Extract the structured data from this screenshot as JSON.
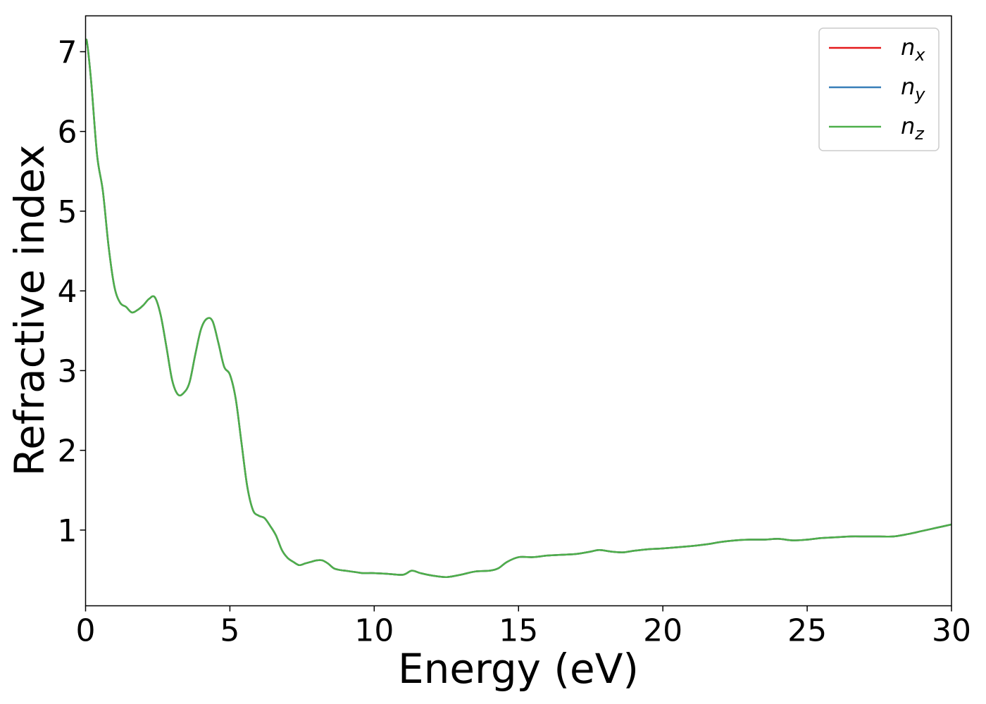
{
  "chart_data": {
    "type": "line",
    "xlabel": "Energy (eV)",
    "ylabel": "Refractive index",
    "xlim": [
      0,
      30
    ],
    "ylim": [
      0.05,
      7.45
    ],
    "grid": false,
    "legend_placement": "top-right",
    "x_ticks": [
      {
        "value": 0,
        "label": "0"
      },
      {
        "value": 5,
        "label": "5"
      },
      {
        "value": 10,
        "label": "10"
      },
      {
        "value": 15,
        "label": "15"
      },
      {
        "value": 20,
        "label": "20"
      },
      {
        "value": 25,
        "label": "25"
      },
      {
        "value": 30,
        "label": "30"
      }
    ],
    "y_ticks": [
      {
        "value": 1,
        "label": "1"
      },
      {
        "value": 2,
        "label": "2"
      },
      {
        "value": 3,
        "label": "3"
      },
      {
        "value": 4,
        "label": "4"
      },
      {
        "value": 5,
        "label": "5"
      },
      {
        "value": 6,
        "label": "6"
      },
      {
        "value": 7,
        "label": "7"
      }
    ],
    "x": [
      0,
      0.05,
      0.2,
      0.4,
      0.6,
      0.8,
      1.0,
      1.2,
      1.4,
      1.6,
      1.8,
      2.0,
      2.2,
      2.4,
      2.6,
      2.8,
      3.0,
      3.2,
      3.4,
      3.6,
      3.8,
      4.0,
      4.2,
      4.4,
      4.6,
      4.8,
      5.0,
      5.2,
      5.4,
      5.6,
      5.8,
      6.0,
      6.2,
      6.4,
      6.6,
      6.8,
      7.0,
      7.2,
      7.4,
      7.6,
      7.8,
      8.0,
      8.2,
      8.4,
      8.6,
      8.8,
      9.0,
      9.2,
      9.4,
      9.6,
      9.8,
      10.0,
      10.5,
      11.0,
      11.3,
      11.6,
      12.0,
      12.5,
      13.0,
      13.5,
      14.0,
      14.3,
      14.6,
      15.0,
      15.5,
      16.0,
      16.5,
      17.0,
      17.5,
      17.8,
      18.2,
      18.6,
      19.0,
      19.5,
      20.0,
      21.0,
      21.5,
      22.0,
      22.5,
      23.0,
      23.5,
      24.0,
      24.5,
      25.0,
      25.5,
      26.0,
      26.5,
      27.0,
      27.5,
      28.0,
      28.5,
      29.0,
      29.5,
      30.0
    ],
    "series": [
      {
        "name": "n_x",
        "color": "#e41a1c",
        "values": [
          7.1,
          7.12,
          6.6,
          5.7,
          5.25,
          4.55,
          4.05,
          3.85,
          3.8,
          3.73,
          3.76,
          3.82,
          3.9,
          3.92,
          3.7,
          3.3,
          2.88,
          2.7,
          2.72,
          2.85,
          3.2,
          3.52,
          3.65,
          3.62,
          3.35,
          3.05,
          2.95,
          2.65,
          2.1,
          1.55,
          1.25,
          1.18,
          1.15,
          1.05,
          0.93,
          0.75,
          0.65,
          0.6,
          0.56,
          0.58,
          0.6,
          0.62,
          0.62,
          0.58,
          0.52,
          0.5,
          0.49,
          0.48,
          0.47,
          0.46,
          0.46,
          0.46,
          0.45,
          0.44,
          0.49,
          0.46,
          0.43,
          0.41,
          0.44,
          0.48,
          0.49,
          0.52,
          0.6,
          0.66,
          0.66,
          0.68,
          0.69,
          0.7,
          0.73,
          0.75,
          0.73,
          0.72,
          0.74,
          0.76,
          0.77,
          0.8,
          0.82,
          0.85,
          0.87,
          0.88,
          0.88,
          0.89,
          0.87,
          0.88,
          0.9,
          0.91,
          0.92,
          0.92,
          0.92,
          0.92,
          0.95,
          0.99,
          1.03,
          1.07
        ]
      },
      {
        "name": "n_y",
        "color": "#377eb8",
        "values": [
          7.1,
          7.12,
          6.6,
          5.7,
          5.25,
          4.55,
          4.05,
          3.85,
          3.8,
          3.73,
          3.76,
          3.82,
          3.9,
          3.92,
          3.7,
          3.3,
          2.88,
          2.7,
          2.72,
          2.85,
          3.2,
          3.52,
          3.65,
          3.62,
          3.35,
          3.05,
          2.95,
          2.65,
          2.1,
          1.55,
          1.25,
          1.18,
          1.15,
          1.05,
          0.93,
          0.75,
          0.65,
          0.6,
          0.56,
          0.58,
          0.6,
          0.62,
          0.62,
          0.58,
          0.52,
          0.5,
          0.49,
          0.48,
          0.47,
          0.46,
          0.46,
          0.46,
          0.45,
          0.44,
          0.49,
          0.46,
          0.43,
          0.41,
          0.44,
          0.48,
          0.49,
          0.52,
          0.6,
          0.66,
          0.66,
          0.68,
          0.69,
          0.7,
          0.73,
          0.75,
          0.73,
          0.72,
          0.74,
          0.76,
          0.77,
          0.8,
          0.82,
          0.85,
          0.87,
          0.88,
          0.88,
          0.89,
          0.87,
          0.88,
          0.9,
          0.91,
          0.92,
          0.92,
          0.92,
          0.92,
          0.95,
          0.99,
          1.03,
          1.07
        ]
      },
      {
        "name": "n_z",
        "color": "#4daf4a",
        "values": [
          7.1,
          7.12,
          6.6,
          5.7,
          5.25,
          4.55,
          4.05,
          3.85,
          3.8,
          3.73,
          3.76,
          3.82,
          3.9,
          3.92,
          3.7,
          3.3,
          2.88,
          2.7,
          2.72,
          2.85,
          3.2,
          3.52,
          3.65,
          3.62,
          3.35,
          3.05,
          2.95,
          2.65,
          2.1,
          1.55,
          1.25,
          1.18,
          1.15,
          1.05,
          0.93,
          0.75,
          0.65,
          0.6,
          0.56,
          0.58,
          0.6,
          0.62,
          0.62,
          0.58,
          0.52,
          0.5,
          0.49,
          0.48,
          0.47,
          0.46,
          0.46,
          0.46,
          0.45,
          0.44,
          0.49,
          0.46,
          0.43,
          0.41,
          0.44,
          0.48,
          0.49,
          0.52,
          0.6,
          0.66,
          0.66,
          0.68,
          0.69,
          0.7,
          0.73,
          0.75,
          0.73,
          0.72,
          0.74,
          0.76,
          0.77,
          0.8,
          0.82,
          0.85,
          0.87,
          0.88,
          0.88,
          0.89,
          0.87,
          0.88,
          0.9,
          0.91,
          0.92,
          0.92,
          0.92,
          0.92,
          0.95,
          0.99,
          1.03,
          1.07
        ]
      }
    ],
    "legend": [
      {
        "base": "n",
        "sub": "x",
        "color": "#e41a1c"
      },
      {
        "base": "n",
        "sub": "y",
        "color": "#377eb8"
      },
      {
        "base": "n",
        "sub": "z",
        "color": "#4daf4a"
      }
    ]
  }
}
